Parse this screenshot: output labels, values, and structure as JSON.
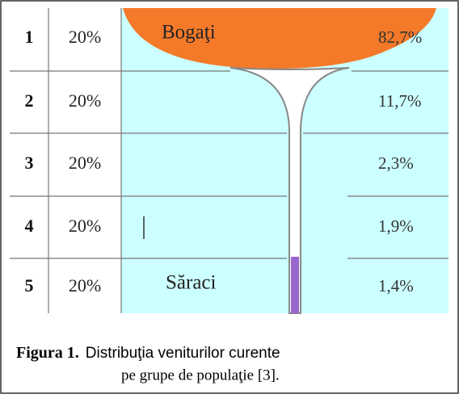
{
  "table": {
    "rows": [
      [
        "1",
        "20%",
        "82,7%"
      ],
      [
        "2",
        "20%",
        "11,7%"
      ],
      [
        "3",
        "20%",
        "2,3%"
      ],
      [
        "4",
        "20%",
        "1,9%"
      ],
      [
        "5",
        "20%",
        "1,4%"
      ]
    ]
  },
  "labels": {
    "top": "Bogaţi",
    "bottom": "Săraci"
  },
  "caption": {
    "label": "Figura 1.",
    "line1": "Distribuţia veniturilor curente",
    "line2": "pe grupe de populaţie [3]."
  }
}
